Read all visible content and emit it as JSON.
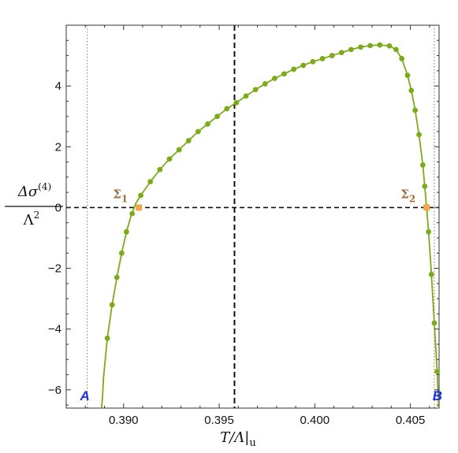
{
  "chart_data": {
    "type": "line",
    "xlim": [
      0.387,
      0.4065
    ],
    "ylim": [
      -6.6,
      6.0
    ],
    "x_ticks": [
      "0.390",
      "0.395",
      "0.400",
      "0.405"
    ],
    "x_tick_values": [
      0.39,
      0.395,
      0.4,
      0.405
    ],
    "y_ticks": [
      "−6",
      "−4",
      "−2",
      "0",
      "2",
      "4"
    ],
    "y_tick_values": [
      -6,
      -4,
      -2,
      0,
      2,
      4
    ],
    "xlabel": {
      "main": "T/Λ|",
      "sub": "u"
    },
    "ylabel": {
      "numerator": "Δσ",
      "superscript": "(4)",
      "denominator": "Λ",
      "denominator_power": "2"
    },
    "series": [
      {
        "color": "#7cab1a",
        "curve": [
          [
            0.38885,
            -6.6
          ],
          [
            0.3889,
            -6.2
          ],
          [
            0.38895,
            -5.6
          ],
          [
            0.38915,
            -4.3
          ],
          [
            0.3894,
            -3.2
          ],
          [
            0.38965,
            -2.3
          ],
          [
            0.3899,
            -1.5
          ],
          [
            0.39015,
            -0.8
          ],
          [
            0.3904,
            -0.25
          ],
          [
            0.3908,
            0.0
          ],
          [
            0.39065,
            0.15
          ],
          [
            0.3909,
            0.4
          ],
          [
            0.3914,
            0.85
          ],
          [
            0.3919,
            1.25
          ],
          [
            0.3924,
            1.6
          ],
          [
            0.3929,
            1.9
          ],
          [
            0.3934,
            2.2
          ],
          [
            0.3939,
            2.5
          ],
          [
            0.3944,
            2.75
          ],
          [
            0.3949,
            3.0
          ],
          [
            0.3954,
            3.25
          ],
          [
            0.3959,
            3.45
          ],
          [
            0.3964,
            3.67
          ],
          [
            0.3969,
            3.88
          ],
          [
            0.3974,
            4.07
          ],
          [
            0.3979,
            4.25
          ],
          [
            0.3984,
            4.4
          ],
          [
            0.3989,
            4.55
          ],
          [
            0.3994,
            4.68
          ],
          [
            0.3999,
            4.8
          ],
          [
            0.4004,
            4.9
          ],
          [
            0.4009,
            5.0
          ],
          [
            0.4014,
            5.1
          ],
          [
            0.4019,
            5.2
          ],
          [
            0.4024,
            5.28
          ],
          [
            0.4029,
            5.33
          ],
          [
            0.4034,
            5.35
          ],
          [
            0.4039,
            5.32
          ],
          [
            0.40425,
            5.2
          ],
          [
            0.40455,
            4.9
          ],
          [
            0.40485,
            4.35
          ],
          [
            0.40505,
            3.85
          ],
          [
            0.40525,
            3.2
          ],
          [
            0.40545,
            2.4
          ],
          [
            0.40565,
            1.4
          ],
          [
            0.40575,
            0.7
          ],
          [
            0.40585,
            0.0
          ],
          [
            0.40595,
            -0.8
          ],
          [
            0.4061,
            -2.2
          ],
          [
            0.40625,
            -3.8
          ],
          [
            0.4064,
            -5.4
          ],
          [
            0.40648,
            -6.6
          ]
        ],
        "points": [
          [
            0.38915,
            -4.3
          ],
          [
            0.3894,
            -3.2
          ],
          [
            0.38965,
            -2.3
          ],
          [
            0.3899,
            -1.5
          ],
          [
            0.39015,
            -0.8
          ],
          [
            0.39045,
            -0.2
          ],
          [
            0.3909,
            0.4
          ],
          [
            0.3914,
            0.85
          ],
          [
            0.3919,
            1.25
          ],
          [
            0.3924,
            1.6
          ],
          [
            0.3929,
            1.9
          ],
          [
            0.3934,
            2.2
          ],
          [
            0.3939,
            2.5
          ],
          [
            0.3944,
            2.75
          ],
          [
            0.3949,
            3.0
          ],
          [
            0.3954,
            3.25
          ],
          [
            0.3959,
            3.45
          ],
          [
            0.3964,
            3.67
          ],
          [
            0.3969,
            3.88
          ],
          [
            0.3974,
            4.07
          ],
          [
            0.3979,
            4.25
          ],
          [
            0.3984,
            4.4
          ],
          [
            0.3989,
            4.55
          ],
          [
            0.3994,
            4.68
          ],
          [
            0.3999,
            4.8
          ],
          [
            0.4004,
            4.9
          ],
          [
            0.4009,
            5.0
          ],
          [
            0.4014,
            5.1
          ],
          [
            0.4019,
            5.2
          ],
          [
            0.4024,
            5.28
          ],
          [
            0.4029,
            5.33
          ],
          [
            0.4034,
            5.35
          ],
          [
            0.4039,
            5.32
          ],
          [
            0.40425,
            5.2
          ],
          [
            0.40455,
            4.9
          ],
          [
            0.40485,
            4.35
          ],
          [
            0.40505,
            3.85
          ],
          [
            0.40525,
            3.2
          ],
          [
            0.40545,
            2.4
          ],
          [
            0.40565,
            1.4
          ],
          [
            0.40575,
            0.7
          ],
          [
            0.40595,
            -0.8
          ],
          [
            0.4061,
            -2.2
          ],
          [
            0.40625,
            -3.8
          ],
          [
            0.4064,
            -5.4
          ]
        ]
      }
    ],
    "reference_lines": {
      "horizontal_dashed_y": 0,
      "vertical_dashed_x": 0.3958,
      "dotted_x": [
        0.3881,
        0.40625
      ],
      "dotted_color": "#c87a55"
    },
    "markers": [
      {
        "label": "Σ",
        "sub": "1",
        "x": 0.3908,
        "y": 0,
        "color": "#f0a64a"
      },
      {
        "label": "Σ",
        "sub": "2",
        "x": 0.40585,
        "y": 0,
        "color": "#f0a64a"
      }
    ],
    "endpoints": [
      {
        "label": "A",
        "x": 0.3881
      },
      {
        "label": "B",
        "x": 0.40625
      }
    ],
    "grid": false
  }
}
